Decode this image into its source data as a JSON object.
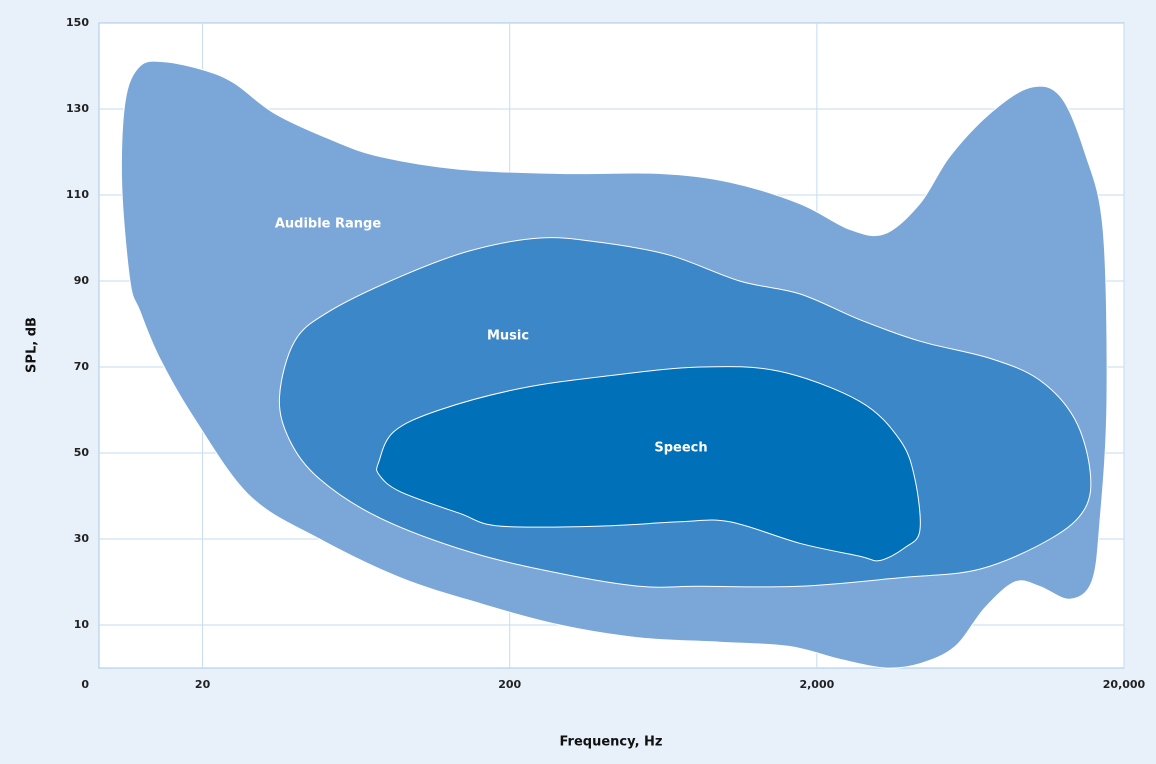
{
  "chart_data": {
    "type": "area",
    "xlabel": "Frequency, Hz",
    "ylabel": "SPL, dB",
    "xscale": "log",
    "xlim": [
      9.2,
      20000
    ],
    "ylim": [
      0,
      150
    ],
    "xticks": [
      20,
      200,
      {
        "value": 2000,
        "label": "2,000"
      },
      {
        "value": 20000,
        "label": "20,000"
      }
    ],
    "yticks": [
      0,
      10,
      30,
      50,
      70,
      90,
      110,
      130,
      150
    ],
    "grid": true,
    "series": [
      {
        "name": "Audible Range",
        "color": "#7ba7d8",
        "x": [
          11.6,
          10.9,
          11.2,
          12.5,
          15,
          20.3,
          25.4,
          34.3,
          51.9,
          75,
          137,
          291,
          616,
          1040,
          1760,
          2560,
          3330,
          4330,
          5420,
          7330,
          9880,
          12400,
          14900,
          17100,
          17600,
          16700,
          15700,
          13300,
          10600,
          8830,
          7050,
          5640,
          4330,
          3330,
          2380,
          1630,
          966,
          530,
          291,
          160,
          88,
          48,
          28.5,
          18.8,
          14.5,
          12.5
        ],
        "values": [
          90,
          113,
          132,
          140,
          141,
          139,
          136,
          129,
          123,
          119,
          116,
          115,
          115,
          113,
          108,
          102,
          101,
          108,
          119,
          129,
          135,
          133,
          120,
          102,
          62,
          34,
          20,
          16,
          19,
          20,
          14,
          5,
          1,
          0,
          2,
          5,
          6,
          7,
          10,
          15,
          21,
          30,
          40,
          58,
          72,
          83
        ]
      },
      {
        "name": "Music",
        "color": "#3b87c7",
        "x": [
          35.6,
          39.9,
          51.9,
          88,
          148,
          251,
          393,
          664,
          1120,
          1760,
          2760,
          4330,
          7330,
          10600,
          13800,
          15500,
          14900,
          11500,
          6790,
          3730,
          1760,
          832,
          530,
          291,
          148,
          75,
          48,
          38.4
        ],
        "values": [
          63,
          76,
          83,
          91,
          97,
          100,
          99,
          96,
          90,
          87,
          81,
          76,
          72,
          67,
          58,
          46,
          37,
          30,
          23,
          21,
          19,
          19,
          19,
          22,
          27,
          35,
          44,
          53
        ]
      },
      {
        "name": "Speech",
        "color": "#0070b8",
        "x": [
          75,
          84,
          118,
          216,
          424,
          832,
          1510,
          2760,
          3730,
          4170,
          4330,
          3870,
          3210,
          2760,
          1760,
          1040,
          716,
          393,
          186,
          137,
          88,
          75
        ],
        "values": [
          48,
          55,
          60,
          65,
          68,
          70,
          69,
          62,
          53,
          44,
          32,
          28,
          25,
          26,
          29,
          34,
          34,
          33,
          33,
          36,
          41,
          45
        ]
      }
    ]
  }
}
